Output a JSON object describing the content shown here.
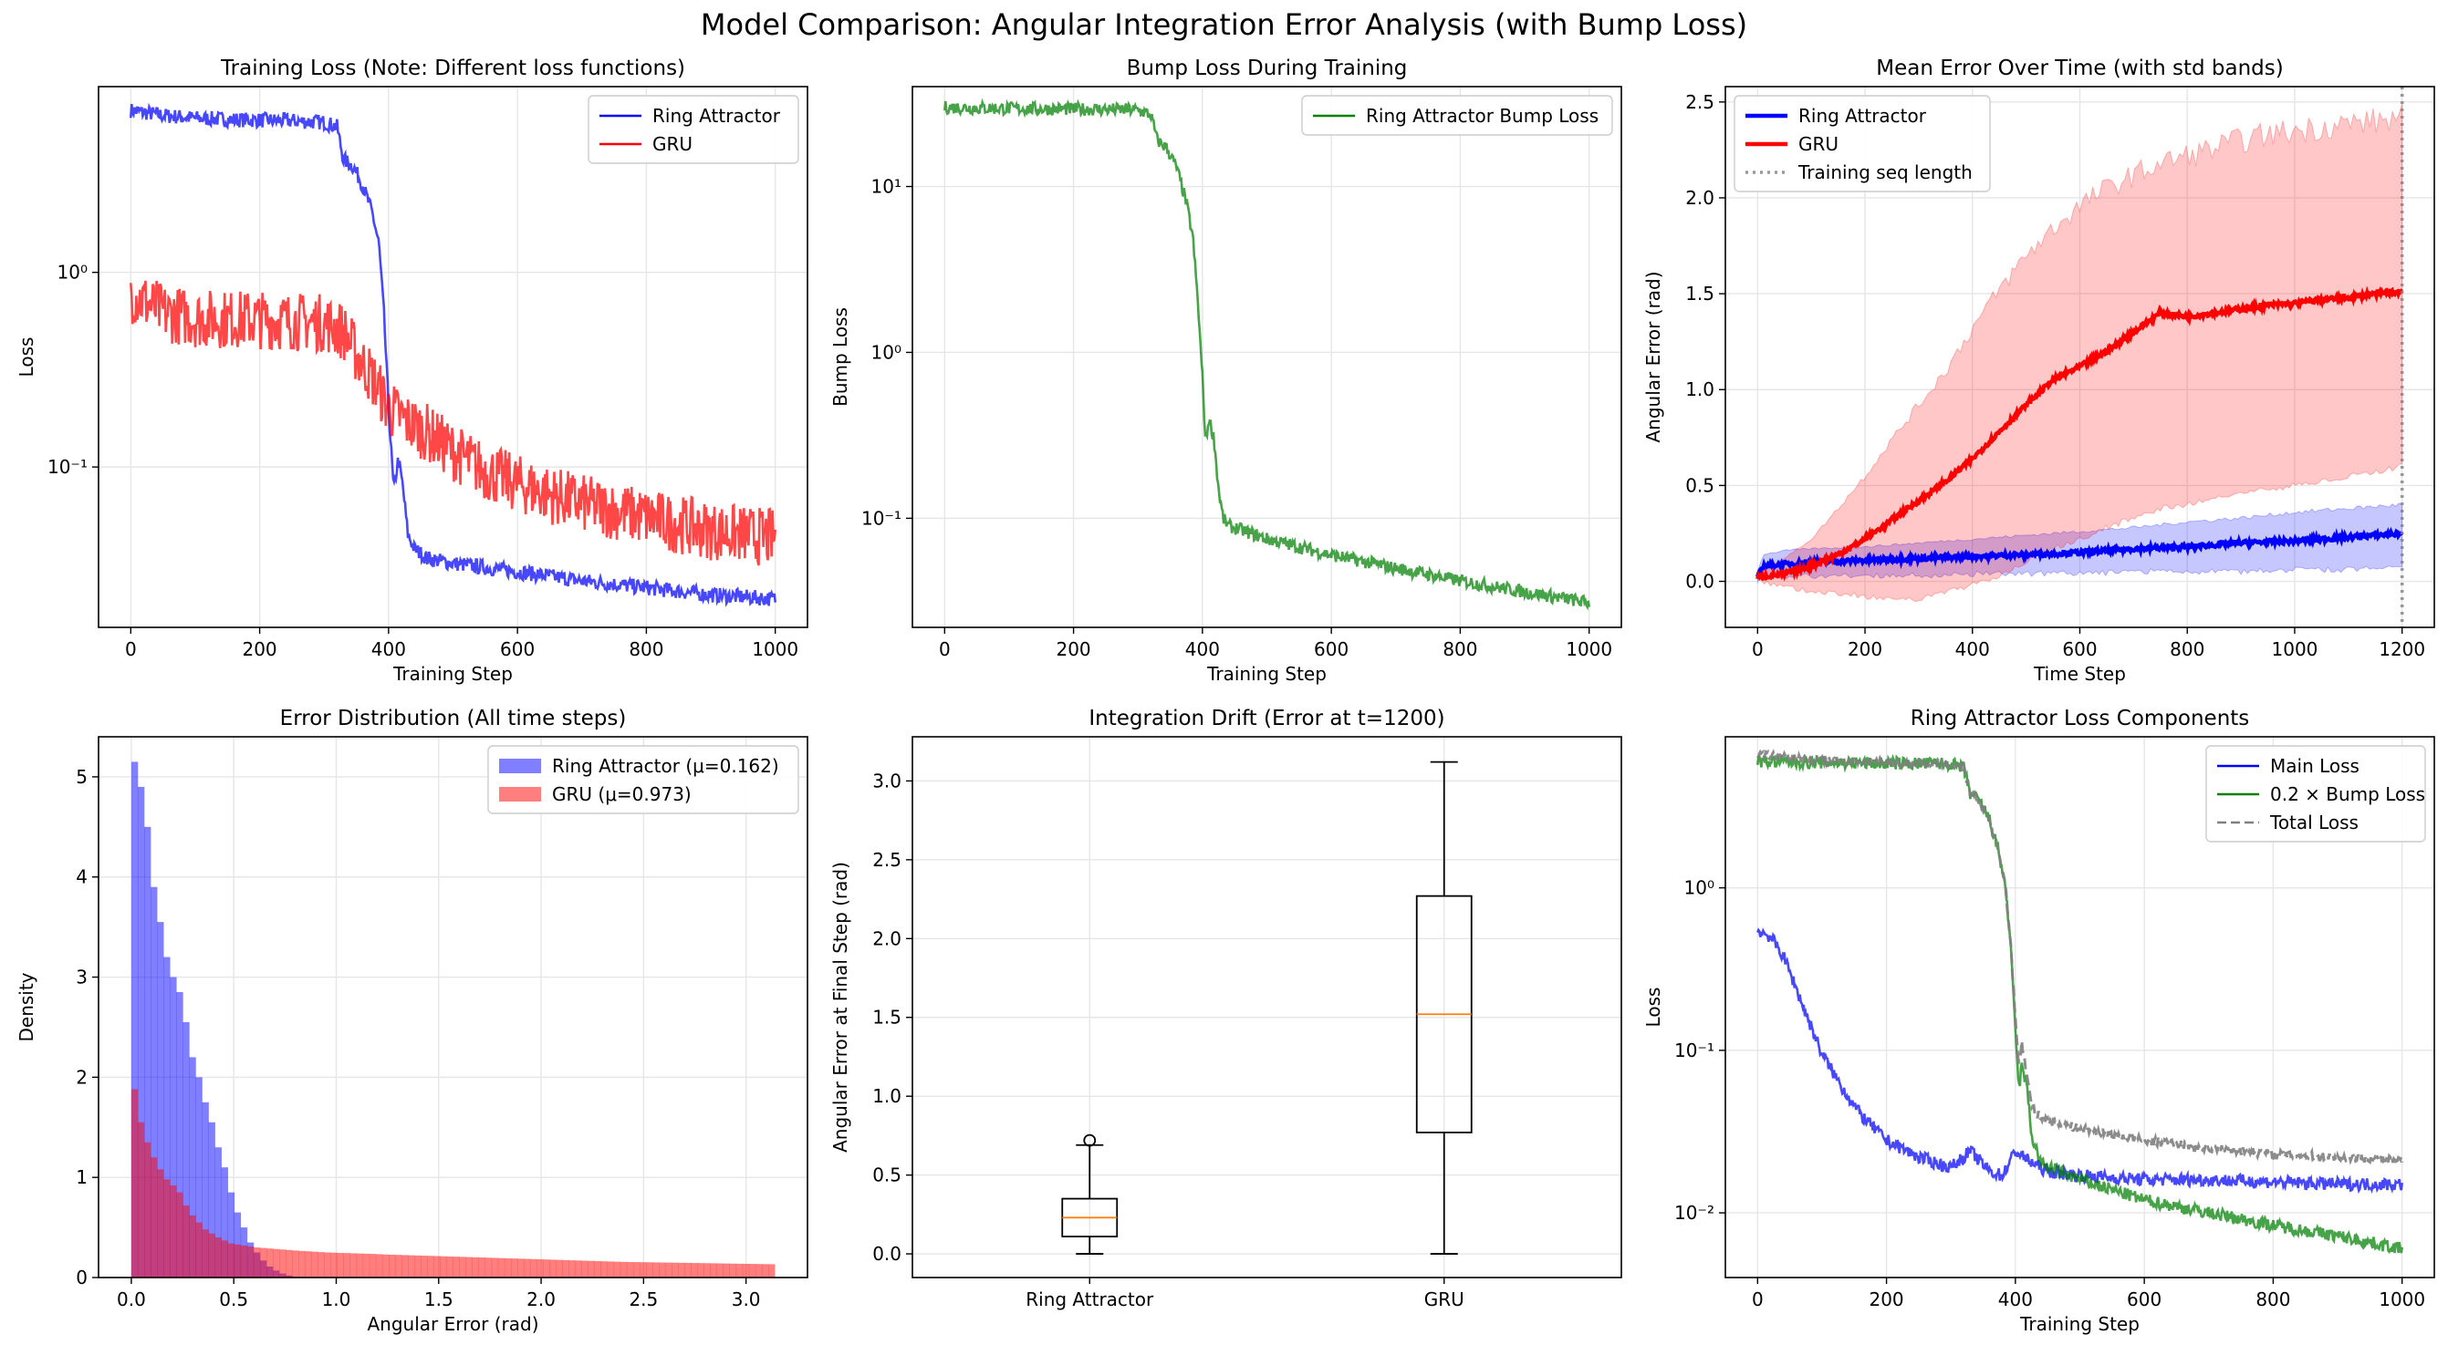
{
  "suptitle": "Model Comparison: Angular Integration Error Analysis (with Bump Loss)",
  "chart_data": [
    {
      "type": "line",
      "title": "Training Loss (Note: Different loss functions)",
      "xlabel": "Training Step",
      "ylabel": "Loss",
      "yscale": "log",
      "xlim": [
        -50,
        1050
      ],
      "ylim": [
        0.015,
        9
      ],
      "xticks": [
        0,
        200,
        400,
        600,
        800,
        1000
      ],
      "xtick_labels": [
        "0",
        "200",
        "400",
        "600",
        "800",
        "1000"
      ],
      "yticks": [
        1,
        0.1
      ],
      "ytick_labels": [
        "10⁰",
        "10⁻¹"
      ],
      "legend": "top-right",
      "grid": true,
      "series": [
        {
          "name": "Ring Attractor",
          "color": "#0000ff",
          "x": [
            0,
            50,
            100,
            150,
            200,
            250,
            300,
            320,
            330,
            345,
            360,
            375,
            385,
            393,
            400,
            408,
            415,
            422,
            430,
            440,
            460,
            500,
            600,
            700,
            800,
            900,
            1000
          ],
          "y": [
            6.8,
            6.4,
            6.2,
            6.1,
            6.05,
            6.0,
            5.9,
            5.6,
            3.8,
            3.5,
            2.8,
            2.0,
            1.4,
            0.6,
            0.2,
            0.075,
            0.11,
            0.08,
            0.045,
            0.038,
            0.034,
            0.032,
            0.029,
            0.026,
            0.024,
            0.022,
            0.021
          ]
        },
        {
          "name": "GRU",
          "color": "#ff0000",
          "x": [
            0,
            50,
            100,
            200,
            300,
            330,
            350,
            380,
            400,
            430,
            460,
            500,
            550,
            600,
            650,
            700,
            800,
            900,
            1000
          ],
          "y": [
            0.78,
            0.62,
            0.58,
            0.57,
            0.55,
            0.5,
            0.38,
            0.27,
            0.2,
            0.17,
            0.15,
            0.12,
            0.095,
            0.082,
            0.072,
            0.065,
            0.055,
            0.047,
            0.043
          ]
        }
      ]
    },
    {
      "type": "line",
      "title": "Bump Loss During Training",
      "xlabel": "Training Step",
      "ylabel": "Bump Loss",
      "yscale": "log",
      "xlim": [
        -50,
        1050
      ],
      "ylim": [
        0.022,
        40
      ],
      "xticks": [
        0,
        200,
        400,
        600,
        800,
        1000
      ],
      "xtick_labels": [
        "0",
        "200",
        "400",
        "600",
        "800",
        "1000"
      ],
      "yticks": [
        10,
        1,
        0.1
      ],
      "ytick_labels": [
        "10¹",
        "10⁰",
        "10⁻¹"
      ],
      "legend": "top-right",
      "grid": true,
      "series": [
        {
          "name": "Ring Attractor Bump Loss",
          "color": "#008000",
          "x": [
            0,
            100,
            200,
            300,
            320,
            330,
            345,
            360,
            375,
            385,
            393,
            400,
            405,
            410,
            418,
            425,
            432,
            440,
            460,
            500,
            600,
            700,
            800,
            900,
            1000
          ],
          "y": [
            30,
            29.5,
            29.3,
            29,
            27,
            19,
            17,
            13,
            8,
            5,
            2,
            0.7,
            0.28,
            0.4,
            0.3,
            0.15,
            0.1,
            0.09,
            0.085,
            0.075,
            0.06,
            0.05,
            0.042,
            0.036,
            0.031
          ]
        }
      ]
    },
    {
      "type": "line",
      "title": "Mean Error Over Time (with std bands)",
      "xlabel": "Time Step",
      "ylabel": "Angular Error (rad)",
      "yscale": "linear",
      "xlim": [
        -60,
        1260
      ],
      "ylim": [
        -0.24,
        2.58
      ],
      "xticks": [
        0,
        200,
        400,
        600,
        800,
        1000,
        1200
      ],
      "xtick_labels": [
        "0",
        "200",
        "400",
        "600",
        "800",
        "1000",
        "1200"
      ],
      "yticks": [
        0,
        0.5,
        1,
        1.5,
        2,
        2.5
      ],
      "ytick_labels": [
        "0.0",
        "0.5",
        "1.0",
        "1.5",
        "2.0",
        "2.5"
      ],
      "legend": "top-left",
      "grid": true,
      "vline": {
        "x": 1200,
        "name": "Training seq length",
        "color": "#808080"
      },
      "series": [
        {
          "name": "Ring Attractor",
          "color": "#0000ff",
          "x": [
            0,
            10,
            50,
            100,
            200,
            300,
            400,
            500,
            600,
            700,
            800,
            900,
            1000,
            1100,
            1200
          ],
          "y": [
            0.02,
            0.08,
            0.09,
            0.1,
            0.11,
            0.12,
            0.13,
            0.14,
            0.15,
            0.17,
            0.18,
            0.2,
            0.21,
            0.23,
            0.25
          ],
          "band_lo": [
            0.0,
            0.02,
            0.02,
            0.03,
            0.03,
            0.03,
            0.04,
            0.04,
            0.04,
            0.05,
            0.05,
            0.05,
            0.06,
            0.06,
            0.07
          ],
          "band_hi": [
            0.05,
            0.14,
            0.16,
            0.17,
            0.18,
            0.2,
            0.22,
            0.24,
            0.26,
            0.28,
            0.31,
            0.33,
            0.36,
            0.38,
            0.4
          ]
        },
        {
          "name": "GRU",
          "color": "#ff0000",
          "x": [
            0,
            50,
            100,
            150,
            200,
            250,
            300,
            350,
            400,
            450,
            500,
            550,
            600,
            650,
            700,
            750,
            800,
            850,
            900,
            950,
            1000,
            1050,
            1100,
            1150,
            1200
          ],
          "y": [
            0.02,
            0.04,
            0.08,
            0.14,
            0.22,
            0.32,
            0.42,
            0.52,
            0.64,
            0.78,
            0.92,
            1.05,
            1.12,
            1.2,
            1.3,
            1.4,
            1.38,
            1.4,
            1.42,
            1.44,
            1.45,
            1.47,
            1.48,
            1.5,
            1.51
          ],
          "band_lo": [
            0.0,
            -0.03,
            -0.05,
            -0.06,
            -0.08,
            -0.1,
            -0.09,
            -0.05,
            -0.02,
            0.03,
            0.1,
            0.17,
            0.22,
            0.28,
            0.33,
            0.38,
            0.4,
            0.43,
            0.46,
            0.48,
            0.5,
            0.52,
            0.55,
            0.57,
            0.6
          ],
          "band_hi": [
            0.05,
            0.12,
            0.22,
            0.38,
            0.55,
            0.74,
            0.92,
            1.1,
            1.32,
            1.52,
            1.7,
            1.84,
            1.96,
            2.05,
            2.12,
            2.18,
            2.22,
            2.26,
            2.3,
            2.33,
            2.35,
            2.37,
            2.39,
            2.4,
            2.42
          ]
        }
      ]
    },
    {
      "type": "histogram",
      "title": "Error Distribution (All time steps)",
      "xlabel": "Angular Error (rad)",
      "ylabel": "Density",
      "xlim": [
        -0.16,
        3.3
      ],
      "ylim": [
        0,
        5.4
      ],
      "xticks": [
        0,
        0.5,
        1,
        1.5,
        2,
        2.5,
        3
      ],
      "xtick_labels": [
        "0.0",
        "0.5",
        "1.0",
        "1.5",
        "2.0",
        "2.5",
        "3.0"
      ],
      "yticks": [
        0,
        1,
        2,
        3,
        4,
        5
      ],
      "ytick_labels": [
        "0",
        "1",
        "2",
        "3",
        "4",
        "5"
      ],
      "legend": "top-right",
      "grid": true,
      "series": [
        {
          "name": "Ring Attractor (μ=0.162)",
          "color": "#0000ff",
          "opacity": 0.5,
          "bin_start": 0,
          "bin_width": 0.0314,
          "values": [
            5.15,
            4.9,
            4.5,
            3.9,
            3.55,
            3.2,
            3.0,
            2.85,
            2.55,
            2.2,
            2.0,
            1.75,
            1.55,
            1.3,
            1.1,
            0.85,
            0.65,
            0.5,
            0.35,
            0.25,
            0.17,
            0.11,
            0.07,
            0.04,
            0.02
          ]
        },
        {
          "name": "GRU (μ=0.973)",
          "color": "#ff0000",
          "opacity": 0.5,
          "bin_start": 0,
          "bin_width": 0.0314,
          "values": [
            1.88,
            1.55,
            1.35,
            1.2,
            1.08,
            0.98,
            0.92,
            0.85,
            0.72,
            0.62,
            0.55,
            0.48,
            0.44,
            0.4,
            0.37,
            0.34,
            0.33,
            0.32,
            0.31,
            0.3,
            0.295,
            0.29,
            0.285,
            0.28,
            0.275,
            0.27,
            0.265,
            0.262,
            0.258,
            0.254,
            0.25,
            0.248,
            0.246,
            0.244,
            0.242,
            0.24,
            0.238,
            0.236,
            0.233,
            0.23,
            0.228,
            0.226,
            0.224,
            0.222,
            0.22,
            0.218,
            0.216,
            0.214,
            0.212,
            0.21,
            0.208,
            0.206,
            0.204,
            0.202,
            0.2,
            0.198,
            0.196,
            0.194,
            0.192,
            0.19,
            0.188,
            0.186,
            0.184,
            0.182,
            0.18,
            0.178,
            0.176,
            0.174,
            0.172,
            0.17,
            0.168,
            0.166,
            0.164,
            0.162,
            0.16,
            0.158,
            0.156,
            0.155,
            0.154,
            0.153,
            0.152,
            0.151,
            0.15,
            0.149,
            0.148,
            0.147,
            0.146,
            0.145,
            0.144,
            0.143,
            0.142,
            0.141,
            0.14,
            0.139,
            0.138,
            0.137,
            0.136,
            0.135,
            0.134,
            0.133
          ]
        }
      ]
    },
    {
      "type": "box",
      "title": "Integration Drift (Error at t=1200)",
      "xlabel": "",
      "ylabel": "Angular Error at Final Step (rad)",
      "ylim": [
        -0.15,
        3.28
      ],
      "yticks": [
        0,
        0.5,
        1,
        1.5,
        2,
        2.5,
        3
      ],
      "ytick_labels": [
        "0.0",
        "0.5",
        "1.0",
        "1.5",
        "2.0",
        "2.5",
        "3.0"
      ],
      "grid": true,
      "categories": [
        "Ring Attractor",
        "GRU"
      ],
      "boxes": [
        {
          "min": 0.0,
          "q1": 0.11,
          "median": 0.23,
          "q3": 0.35,
          "max": 0.69,
          "outliers": [
            0.72
          ]
        },
        {
          "min": 0.0,
          "q1": 0.77,
          "median": 1.52,
          "q3": 2.27,
          "max": 3.12,
          "outliers": []
        }
      ],
      "median_color": "#ff7f0e"
    },
    {
      "type": "line",
      "title": "Ring Attractor Loss Components",
      "xlabel": "Training Step",
      "ylabel": "Loss",
      "yscale": "log",
      "xlim": [
        -50,
        1050
      ],
      "ylim": [
        0.004,
        8.5
      ],
      "xticks": [
        0,
        200,
        400,
        600,
        800,
        1000
      ],
      "xtick_labels": [
        "0",
        "200",
        "400",
        "600",
        "800",
        "1000"
      ],
      "yticks": [
        1,
        0.1,
        0.01
      ],
      "ytick_labels": [
        "10⁰",
        "10⁻¹",
        "10⁻²"
      ],
      "legend": "top-right",
      "grid": true,
      "series": [
        {
          "name": "Main Loss",
          "color": "#0000ff",
          "x": [
            0,
            20,
            40,
            60,
            80,
            100,
            130,
            160,
            200,
            250,
            300,
            330,
            360,
            380,
            400,
            420,
            450,
            500,
            600,
            700,
            800,
            900,
            1000
          ],
          "y": [
            0.55,
            0.5,
            0.38,
            0.24,
            0.15,
            0.095,
            0.06,
            0.04,
            0.028,
            0.022,
            0.019,
            0.024,
            0.018,
            0.017,
            0.024,
            0.021,
            0.018,
            0.017,
            0.016,
            0.016,
            0.0155,
            0.015,
            0.015
          ]
        },
        {
          "name": "0.2 × Bump Loss",
          "color": "#008000",
          "x": [
            0,
            100,
            200,
            300,
            320,
            330,
            345,
            360,
            375,
            385,
            393,
            400,
            405,
            410,
            418,
            425,
            440,
            500,
            600,
            700,
            800,
            900,
            1000
          ],
          "y": [
            6.0,
            5.9,
            5.85,
            5.8,
            5.4,
            3.8,
            3.4,
            2.6,
            1.6,
            1.0,
            0.4,
            0.14,
            0.056,
            0.08,
            0.06,
            0.03,
            0.02,
            0.016,
            0.012,
            0.01,
            0.0084,
            0.0072,
            0.006
          ]
        },
        {
          "name": "Total Loss",
          "color": "#808080",
          "dash": true,
          "x": [
            0,
            100,
            200,
            300,
            320,
            330,
            345,
            360,
            375,
            385,
            393,
            400,
            405,
            410,
            418,
            425,
            440,
            500,
            600,
            700,
            800,
            900,
            1000
          ],
          "y": [
            6.6,
            6.1,
            5.9,
            5.8,
            5.4,
            3.8,
            3.4,
            2.6,
            1.6,
            1.0,
            0.42,
            0.16,
            0.08,
            0.11,
            0.07,
            0.045,
            0.038,
            0.033,
            0.028,
            0.025,
            0.023,
            0.022,
            0.021
          ]
        }
      ]
    }
  ]
}
